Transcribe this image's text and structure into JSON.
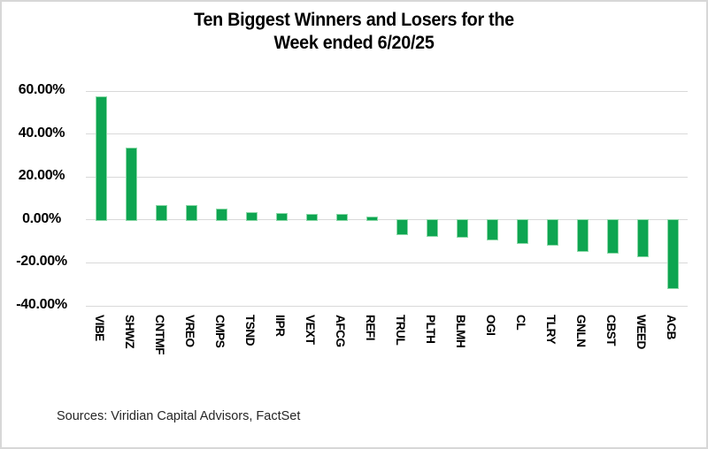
{
  "chart_data": {
    "type": "bar",
    "title_lines": [
      "Ten Biggest Winners and Losers for the",
      "Week ended 6/20/25"
    ],
    "title": "Ten Biggest Winners and Losers for the Week ended 6/20/25",
    "xlabel": "",
    "ylabel": "",
    "ylim": [
      -40,
      60
    ],
    "grid": true,
    "legend": false,
    "bar_color": "#0ea551",
    "bar_edge_color": "#8cd9a8",
    "gridline_color": "#d9d9d9",
    "categories": [
      "VIBE",
      "SHWZ",
      "CNTMF",
      "VREO",
      "CMPS",
      "TSND",
      "IIPR",
      "VEXT",
      "AFCG",
      "REFI",
      "TRUL",
      "PLTH",
      "BLMH",
      "OGI",
      "CL",
      "TLRY",
      "GNLN",
      "CBST",
      "WEED",
      "ACB"
    ],
    "values": [
      57.0,
      33.2,
      6.4,
      6.3,
      5.0,
      3.2,
      2.8,
      2.4,
      2.3,
      1.2,
      -6.8,
      -7.6,
      -8.1,
      -9.1,
      -10.8,
      -11.5,
      -14.6,
      -15.5,
      -17.0,
      -31.6
    ],
    "yticks": [
      {
        "label": "60.00%",
        "value": 60
      },
      {
        "label": "40.00%",
        "value": 40
      },
      {
        "label": "20.00%",
        "value": 20
      },
      {
        "label": "0.00%",
        "value": 0
      },
      {
        "label": "-20.00%",
        "value": -20
      },
      {
        "label": "-40.00%",
        "value": -40
      }
    ]
  },
  "footer": {
    "sources": "Sources: Viridian Capital Advisors, FactSet"
  }
}
